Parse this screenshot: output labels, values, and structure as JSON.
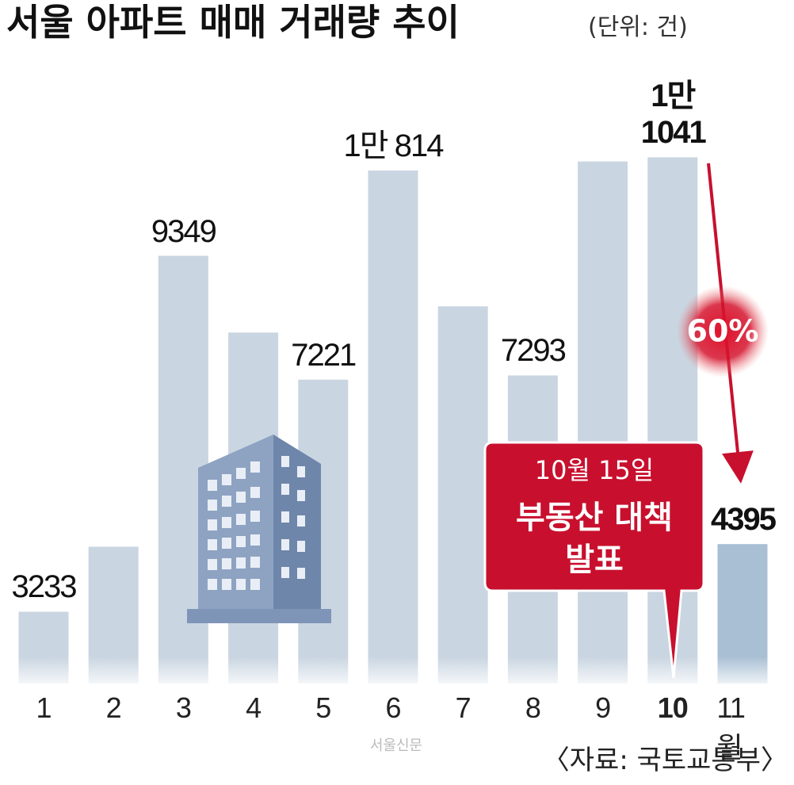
{
  "chart_data": {
    "type": "bar",
    "title": "서울 아파트 매매 거래량 추이",
    "unit": "(단위: 건)",
    "categories": [
      "1",
      "2",
      "3",
      "4",
      "5",
      "6",
      "7",
      "8",
      "9",
      "10",
      "11월"
    ],
    "values": [
      3233,
      4350,
      9349,
      8030,
      7221,
      10814,
      8480,
      7293,
      10970,
      11041,
      4395
    ],
    "value_labels": [
      "3233",
      null,
      "9349",
      null,
      "7221",
      "1만 814",
      null,
      "7293",
      null,
      "1만 1041",
      "4395"
    ],
    "colors": [
      "#c9d5e1",
      "#c9d5e1",
      "#c9d5e1",
      "#c9d5e1",
      "#c9d5e1",
      "#c9d5e1",
      "#c9d5e1",
      "#c9d5e1",
      "#c9d5e1",
      "#c9d5e1",
      "#a9bfd4"
    ],
    "ylim": [
      2000,
      12000
    ],
    "change_label": "60%",
    "callout": {
      "date": "10월 15일",
      "line1": "부동산 대책",
      "line2": "발표"
    },
    "source": "〈자료: 국토교통부〉",
    "publisher": "서울신문"
  }
}
